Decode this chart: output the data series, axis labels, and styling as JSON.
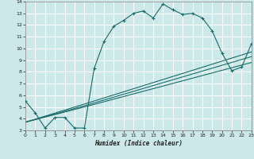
{
  "xlabel": "Humidex (Indice chaleur)",
  "xlim": [
    0,
    23
  ],
  "ylim": [
    3,
    14
  ],
  "xticks": [
    0,
    1,
    2,
    3,
    4,
    5,
    6,
    7,
    8,
    9,
    10,
    11,
    12,
    13,
    14,
    15,
    16,
    17,
    18,
    19,
    20,
    21,
    22,
    23
  ],
  "yticks": [
    3,
    4,
    5,
    6,
    7,
    8,
    9,
    10,
    11,
    12,
    13,
    14
  ],
  "bg_color": "#cce8e8",
  "grid_color": "#b0d4d4",
  "line_color": "#1a6b6b",
  "line1_x": [
    0,
    1,
    2,
    3,
    4,
    5,
    6,
    7,
    8,
    9,
    10,
    11,
    12,
    13,
    14,
    15,
    16,
    17,
    18,
    19,
    20,
    21,
    22,
    23
  ],
  "line1_y": [
    5.5,
    4.5,
    3.2,
    4.1,
    4.1,
    3.2,
    3.2,
    8.3,
    10.6,
    11.9,
    12.4,
    13.0,
    13.2,
    12.6,
    13.8,
    13.3,
    12.9,
    13.0,
    12.6,
    11.5,
    9.6,
    8.1,
    8.4,
    10.4
  ],
  "line2_x": [
    0,
    6,
    23
  ],
  "line2_y": [
    3.7,
    5.0,
    8.8
  ],
  "line3_x": [
    0,
    6,
    23
  ],
  "line3_y": [
    3.7,
    5.1,
    9.3
  ],
  "line4_x": [
    0,
    6,
    23
  ],
  "line4_y": [
    3.7,
    5.25,
    9.7
  ]
}
